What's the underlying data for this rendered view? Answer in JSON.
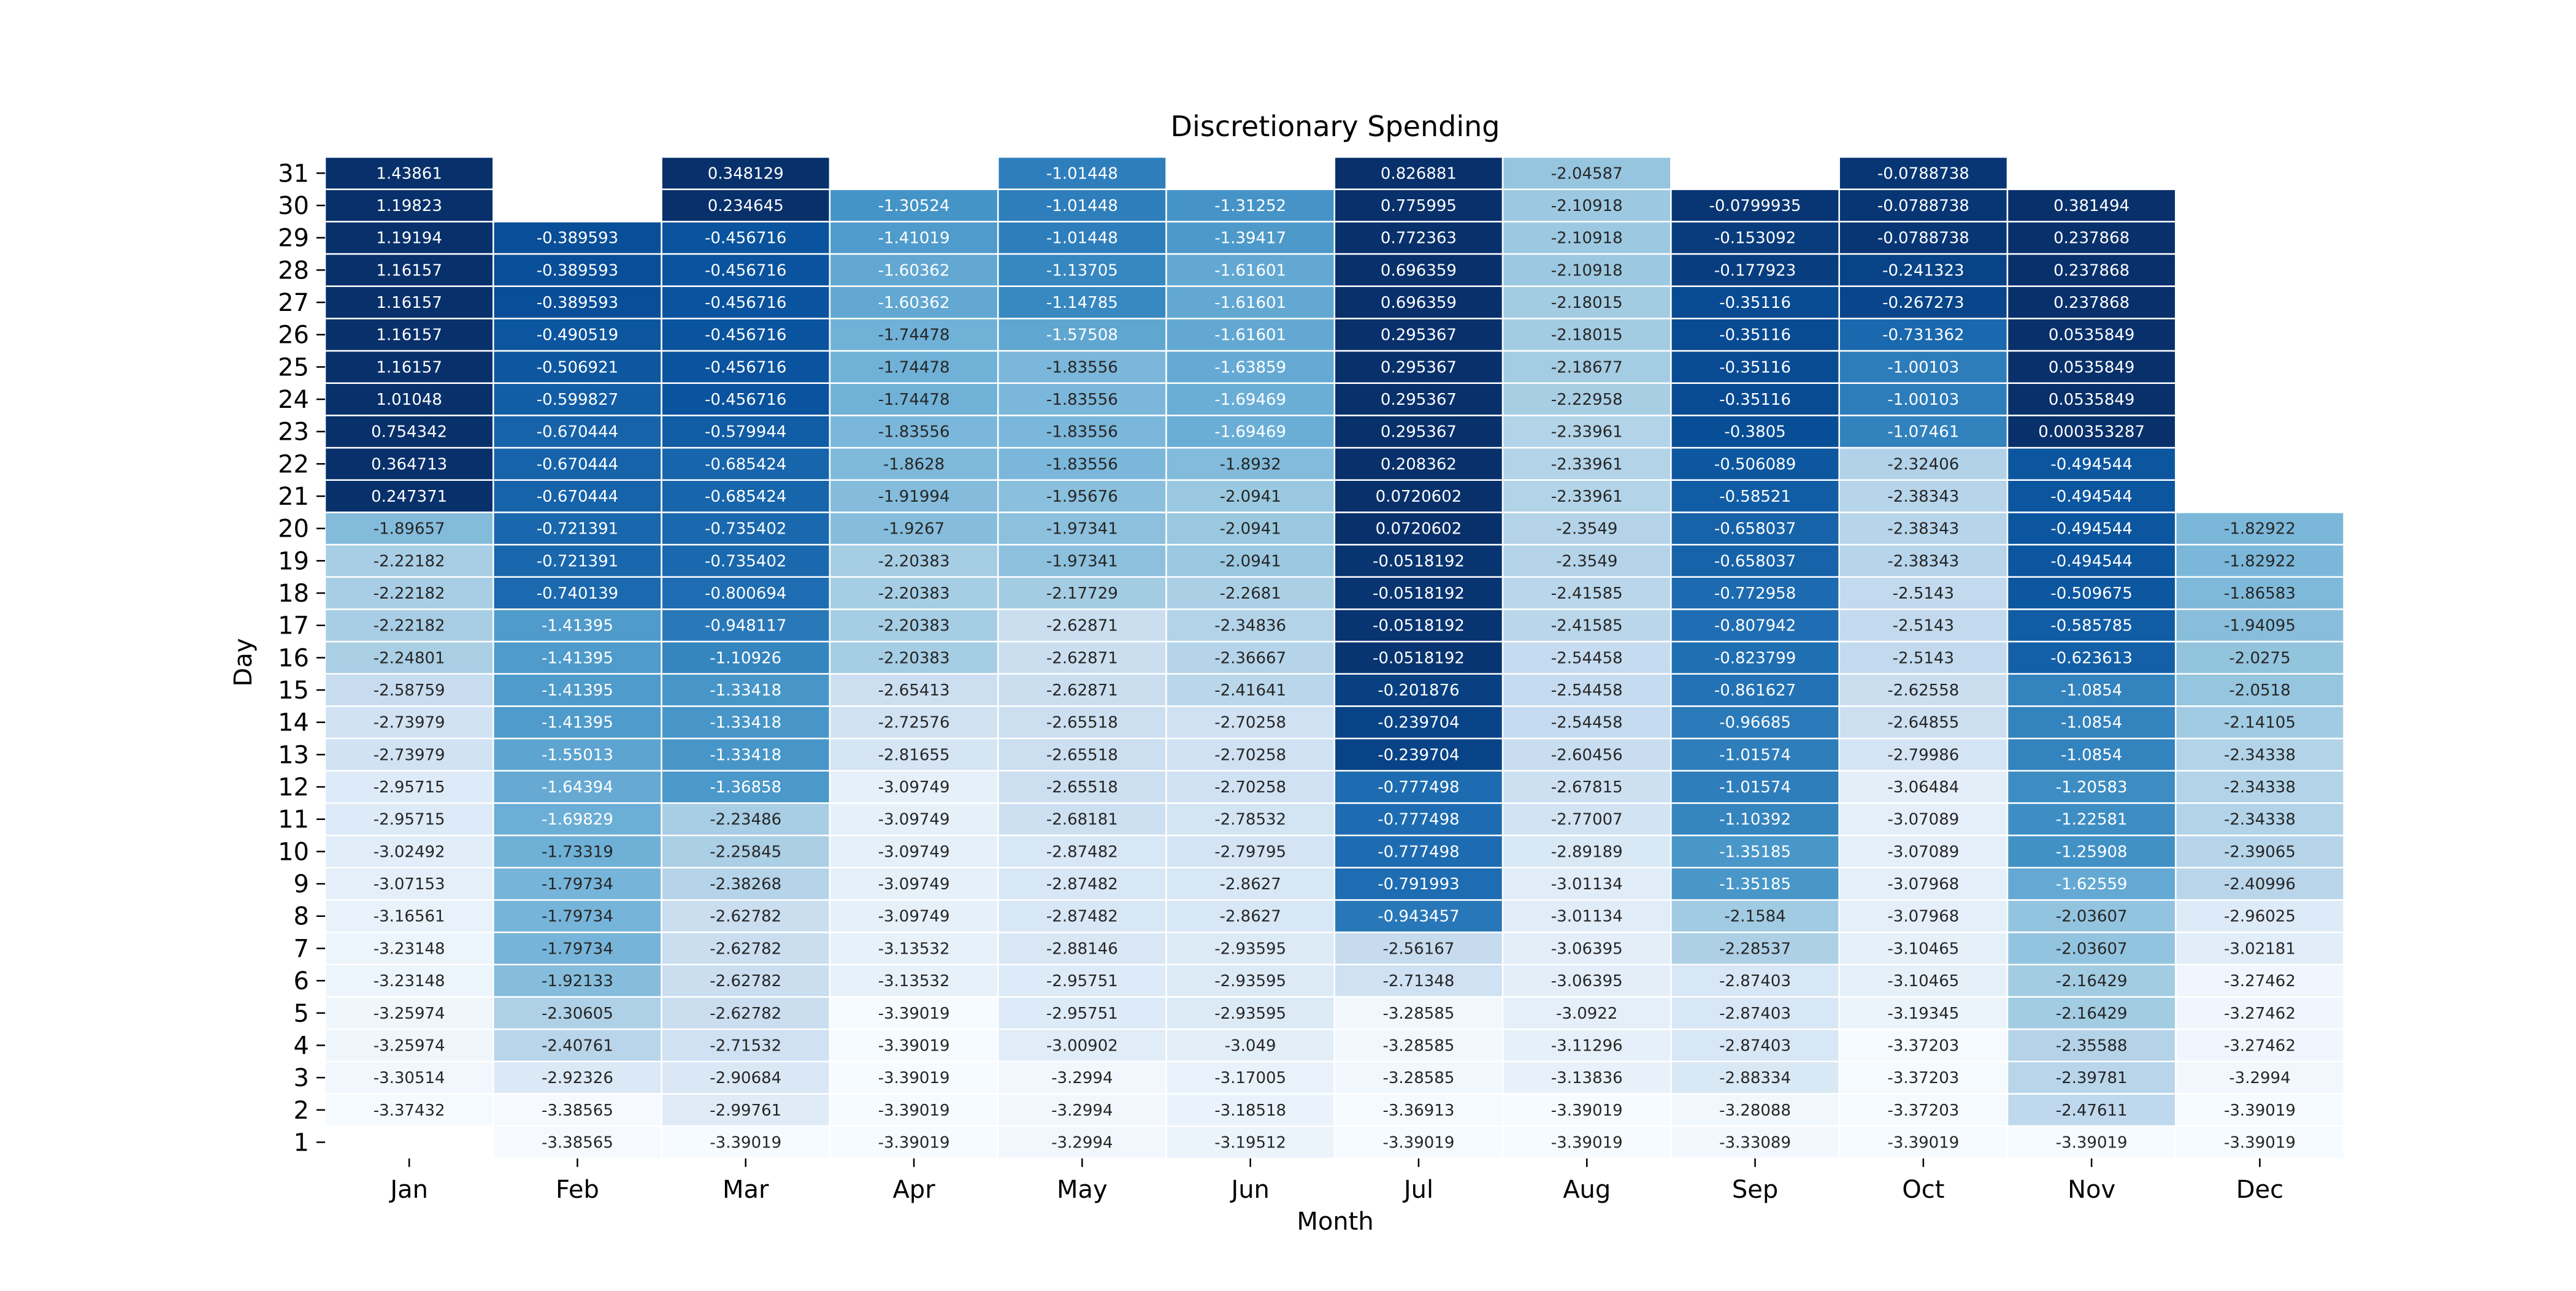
{
  "chart_data": {
    "type": "heatmap",
    "title": "Discretionary Spending",
    "xlabel": "Month",
    "ylabel": "Day",
    "colormap": "Blues (reversed: lower values lighter, higher values darker)",
    "colors": {
      "low": "#f7fbff",
      "high": "#08306b",
      "gridline": "#ffffff"
    },
    "months": [
      "Jan",
      "Feb",
      "Mar",
      "Apr",
      "May",
      "Jun",
      "Jul",
      "Aug",
      "Sep",
      "Oct",
      "Nov",
      "Dec"
    ],
    "days": [
      1,
      2,
      3,
      4,
      5,
      6,
      7,
      8,
      9,
      10,
      11,
      12,
      13,
      14,
      15,
      16,
      17,
      18,
      19,
      20,
      21,
      22,
      23,
      24,
      25,
      26,
      27,
      28,
      29,
      30,
      31
    ],
    "values": [
      [
        null,
        -3.37432,
        -3.30514,
        -3.25974,
        -3.25974,
        -3.23148,
        -3.23148,
        -3.16561,
        -3.07153,
        -3.02492,
        -2.95715,
        -2.95715,
        -2.73979,
        -2.73979,
        -2.58759,
        -2.24801,
        -2.22182,
        -2.22182,
        -2.22182,
        -1.89657,
        0.247371,
        0.364713,
        0.754342,
        1.01048,
        1.16157,
        1.16157,
        1.16157,
        1.16157,
        1.19194,
        1.19823,
        1.43861
      ],
      [
        -3.38565,
        -3.38565,
        -2.92326,
        -2.40761,
        -2.30605,
        -1.92133,
        -1.79734,
        -1.79734,
        -1.79734,
        -1.73319,
        -1.69829,
        -1.64394,
        -1.55013,
        -1.41395,
        -1.41395,
        -1.41395,
        -1.41395,
        -0.740139,
        -0.721391,
        -0.721391,
        -0.670444,
        -0.670444,
        -0.670444,
        -0.599827,
        -0.506921,
        -0.490519,
        -0.389593,
        -0.389593,
        -0.389593,
        null,
        null
      ],
      [
        -3.39019,
        -2.99761,
        -2.90684,
        -2.71532,
        -2.62782,
        -2.62782,
        -2.62782,
        -2.62782,
        -2.38268,
        -2.25845,
        -2.23486,
        -1.36858,
        -1.33418,
        -1.33418,
        -1.33418,
        -1.10926,
        -0.948117,
        -0.800694,
        -0.735402,
        -0.735402,
        -0.685424,
        -0.685424,
        -0.579944,
        -0.456716,
        -0.456716,
        -0.456716,
        -0.456716,
        -0.456716,
        -0.456716,
        0.234645,
        0.348129
      ],
      [
        -3.39019,
        -3.39019,
        -3.39019,
        -3.39019,
        -3.39019,
        -3.13532,
        -3.13532,
        -3.09749,
        -3.09749,
        -3.09749,
        -3.09749,
        -3.09749,
        -2.81655,
        -2.72576,
        -2.65413,
        -2.20383,
        -2.20383,
        -2.20383,
        -2.20383,
        -1.9267,
        -1.91994,
        -1.8628,
        -1.83556,
        -1.74478,
        -1.74478,
        -1.74478,
        -1.60362,
        -1.60362,
        -1.41019,
        -1.30524,
        null
      ],
      [
        -3.2994,
        -3.2994,
        -3.2994,
        -3.00902,
        -2.95751,
        -2.95751,
        -2.88146,
        -2.87482,
        -2.87482,
        -2.87482,
        -2.68181,
        -2.65518,
        -2.65518,
        -2.65518,
        -2.62871,
        -2.62871,
        -2.62871,
        -2.17729,
        -1.97341,
        -1.97341,
        -1.95676,
        -1.83556,
        -1.83556,
        -1.83556,
        -1.83556,
        -1.57508,
        -1.14785,
        -1.13705,
        -1.01448,
        -1.01448,
        -1.01448
      ],
      [
        -3.19512,
        -3.18518,
        -3.17005,
        -3.049,
        -2.93595,
        -2.93595,
        -2.93595,
        -2.8627,
        -2.8627,
        -2.79795,
        -2.78532,
        -2.70258,
        -2.70258,
        -2.70258,
        -2.41641,
        -2.36667,
        -2.34836,
        -2.2681,
        -2.0941,
        -2.0941,
        -2.0941,
        -1.8932,
        -1.69469,
        -1.69469,
        -1.63859,
        -1.61601,
        -1.61601,
        -1.61601,
        -1.39417,
        -1.31252,
        null
      ],
      [
        -3.39019,
        -3.36913,
        -3.28585,
        -3.28585,
        -3.28585,
        -2.71348,
        -2.56167,
        -0.943457,
        -0.791993,
        -0.777498,
        -0.777498,
        -0.777498,
        -0.239704,
        -0.239704,
        -0.201876,
        -0.0518192,
        -0.0518192,
        -0.0518192,
        -0.0518192,
        0.0720602,
        0.0720602,
        0.208362,
        0.295367,
        0.295367,
        0.295367,
        0.295367,
        0.696359,
        0.696359,
        0.772363,
        0.775995,
        0.826881
      ],
      [
        -3.39019,
        -3.39019,
        -3.13836,
        -3.11296,
        -3.0922,
        -3.06395,
        -3.06395,
        -3.01134,
        -3.01134,
        -2.89189,
        -2.77007,
        -2.67815,
        -2.60456,
        -2.54458,
        -2.54458,
        -2.54458,
        -2.41585,
        -2.41585,
        -2.3549,
        -2.3549,
        -2.33961,
        -2.33961,
        -2.33961,
        -2.22958,
        -2.18677,
        -2.18015,
        -2.18015,
        -2.10918,
        -2.10918,
        -2.10918,
        -2.04587
      ],
      [
        -3.33089,
        -3.28088,
        -2.88334,
        -2.87403,
        -2.87403,
        -2.87403,
        -2.28537,
        -2.1584,
        -1.35185,
        -1.35185,
        -1.10392,
        -1.01574,
        -1.01574,
        -0.96685,
        -0.861627,
        -0.823799,
        -0.807942,
        -0.772958,
        -0.658037,
        -0.658037,
        -0.58521,
        -0.506089,
        -0.3805,
        -0.35116,
        -0.35116,
        -0.35116,
        -0.35116,
        -0.177923,
        -0.153092,
        -0.0799935,
        null
      ],
      [
        -3.39019,
        -3.37203,
        -3.37203,
        -3.37203,
        -3.19345,
        -3.10465,
        -3.10465,
        -3.07968,
        -3.07968,
        -3.07089,
        -3.07089,
        -3.06484,
        -2.79986,
        -2.64855,
        -2.62558,
        -2.5143,
        -2.5143,
        -2.5143,
        -2.38343,
        -2.38343,
        -2.38343,
        -2.32406,
        -1.07461,
        -1.00103,
        -1.00103,
        -0.731362,
        -0.267273,
        -0.241323,
        -0.0788738,
        -0.0788738,
        -0.0788738
      ],
      [
        -3.39019,
        -2.47611,
        -2.39781,
        -2.35588,
        -2.16429,
        -2.16429,
        -2.03607,
        -2.03607,
        -1.62559,
        -1.25908,
        -1.22581,
        -1.20583,
        -1.0854,
        -1.0854,
        -1.0854,
        -0.623613,
        -0.585785,
        -0.509675,
        -0.494544,
        -0.494544,
        -0.494544,
        -0.494544,
        0.000353287,
        0.0535849,
        0.0535849,
        0.0535849,
        0.237868,
        0.237868,
        0.237868,
        0.381494,
        null
      ],
      [
        -3.39019,
        -3.39019,
        -3.2994,
        -3.27462,
        -3.27462,
        -3.27462,
        -3.02181,
        -2.96025,
        -2.40996,
        -2.39065,
        -2.34338,
        -2.34338,
        -2.34338,
        -2.14105,
        -2.0518,
        -2.0275,
        -1.94095,
        -1.86583,
        -1.82922,
        -1.82922,
        null,
        null,
        null,
        null,
        null,
        null,
        null,
        null,
        null,
        null,
        null
      ]
    ],
    "color_scale": {
      "min": -3.4,
      "max": 0.0
    },
    "grid": false,
    "legend": "none"
  }
}
